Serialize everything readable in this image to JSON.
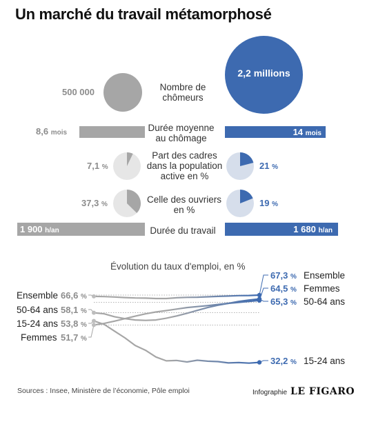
{
  "title": "Un marché du travail métamorphosé",
  "comparison": {
    "rows": [
      {
        "label": "Nombre de chômeurs",
        "before": "500 000",
        "after": "2,2 millions",
        "before_value": 500000,
        "after_value": 2200000
      },
      {
        "label": "Durée moyenne au chômage",
        "before": "8,6",
        "before_unit": "mois",
        "after": "14",
        "after_unit": "mois",
        "before_value": 8.6,
        "after_value": 14
      },
      {
        "label": "Part des cadres dans la population active en %",
        "before": "7,1",
        "before_unit": "%",
        "after": "21",
        "after_unit": "%",
        "before_value": 7.1,
        "after_value": 21
      },
      {
        "label": "Celle des ouvriers en %",
        "before": "37,3",
        "before_unit": "%",
        "after": "19",
        "after_unit": "%",
        "before_value": 37.3,
        "after_value": 19
      },
      {
        "label": "Durée du travail",
        "before": "1 900",
        "before_unit": "h/an",
        "after": "1 680",
        "after_unit": "h/an",
        "before_value": 1900,
        "after_value": 1680
      }
    ],
    "colors": {
      "before": "#a6a6a6",
      "after": "#3d6ab0",
      "pie_bg_before": "#e6e6e6",
      "pie_bg_after": "#d6deeb"
    }
  },
  "chart_data": {
    "type": "line",
    "title": "Évolution du taux d'emploi, en %",
    "series": [
      {
        "name": "Ensemble",
        "start": "66,6",
        "end": "67,3",
        "unit": "%",
        "values": [
          66.6,
          66.5,
          66.3,
          66.0,
          65.8,
          65.7,
          65.5,
          65.5,
          65.9,
          66.1,
          66.2,
          66.4,
          66.6,
          66.8,
          67.0,
          67.1,
          67.3
        ]
      },
      {
        "name": "50-64 ans",
        "start": "58,1",
        "end": "65,3",
        "unit": "%",
        "values": [
          58.1,
          57.5,
          56.0,
          55.0,
          54.3,
          54.1,
          54.3,
          55.2,
          56.4,
          57.8,
          59.3,
          60.8,
          62.0,
          63.0,
          64.0,
          64.7,
          65.3
        ]
      },
      {
        "name": "15-24 ans",
        "start": "53,8",
        "end": "32,2",
        "unit": "%",
        "values": [
          53.8,
          52.0,
          48.5,
          45.0,
          41.0,
          38.5,
          35.0,
          33.0,
          33.2,
          32.4,
          33.3,
          32.8,
          32.6,
          31.9,
          32.1,
          31.8,
          32.2
        ]
      },
      {
        "name": "Femmes",
        "start": "51,7",
        "end": "64,5",
        "unit": "%",
        "values": [
          51.7,
          52.5,
          53.7,
          55.0,
          56.3,
          57.5,
          58.5,
          59.2,
          60.0,
          60.8,
          61.3,
          61.8,
          62.4,
          63.0,
          63.5,
          64.0,
          64.5
        ]
      }
    ],
    "colors": {
      "start": "#a6a6a6",
      "end": "#3d6ab0"
    },
    "grid": true
  },
  "footer": {
    "sources": "Sources : Insee, Ministère de l’économie, Pôle emploi",
    "credit": "Infographie",
    "logo": "LE FIGARO"
  }
}
